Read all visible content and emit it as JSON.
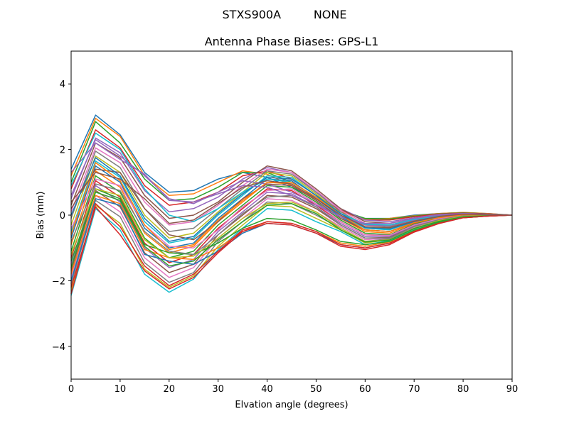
{
  "chart_data": {
    "type": "line",
    "suptitle": "STXS900A         NONE",
    "title": "Antenna Phase Biases: GPS-L1",
    "xlabel": "Elvation angle (degrees)",
    "ylabel": "Bias (mm)",
    "xlim": [
      0,
      90
    ],
    "ylim": [
      -5,
      5
    ],
    "xticks": [
      0,
      10,
      20,
      30,
      40,
      50,
      60,
      70,
      80,
      90
    ],
    "xtick_labels": [
      "0",
      "10",
      "20",
      "30",
      "40",
      "50",
      "60",
      "70",
      "80",
      "90"
    ],
    "yticks": [
      -4,
      -2,
      0,
      2,
      4
    ],
    "ytick_labels": [
      "−4",
      "−2",
      "0",
      "2",
      "4"
    ],
    "grid": false,
    "legend": "none",
    "x": [
      0,
      5,
      10,
      15,
      20,
      25,
      30,
      35,
      40,
      45,
      50,
      55,
      60,
      65,
      70,
      75,
      80,
      85,
      90
    ],
    "colors": [
      "#1f77b4",
      "#ff7f0e",
      "#2ca02c",
      "#d62728",
      "#9467bd",
      "#8c564b",
      "#e377c2",
      "#7f7f7f",
      "#bcbd22",
      "#17becf"
    ],
    "series": [
      {
        "values": [
          1.4,
          3.05,
          2.45,
          1.3,
          0.7,
          0.75,
          1.1,
          1.3,
          1.15,
          0.85,
          0.5,
          0.1,
          -0.1,
          -0.1,
          0.0,
          0.05,
          0.08,
          0.05,
          0.0
        ]
      },
      {
        "values": [
          1.2,
          2.95,
          2.4,
          1.2,
          0.6,
          0.65,
          1.0,
          1.35,
          1.25,
          0.9,
          0.5,
          0.1,
          -0.12,
          -0.1,
          -0.02,
          0.05,
          0.08,
          0.05,
          0.0
        ]
      },
      {
        "values": [
          1.0,
          2.85,
          2.2,
          1.1,
          0.45,
          0.5,
          0.85,
          1.3,
          1.3,
          1.0,
          0.55,
          0.15,
          -0.1,
          -0.12,
          -0.03,
          0.04,
          0.07,
          0.04,
          0.0
        ]
      },
      {
        "values": [
          0.8,
          2.6,
          2.05,
          0.9,
          0.3,
          0.4,
          0.7,
          1.2,
          1.35,
          1.1,
          0.6,
          0.15,
          -0.15,
          -0.15,
          -0.05,
          0.03,
          0.06,
          0.04,
          0.0
        ]
      },
      {
        "values": [
          0.5,
          2.35,
          1.9,
          0.75,
          0.1,
          0.2,
          0.55,
          1.1,
          1.45,
          1.3,
          0.7,
          0.2,
          -0.15,
          -0.2,
          -0.08,
          0.02,
          0.05,
          0.03,
          0.0
        ]
      },
      {
        "values": [
          0.3,
          2.2,
          1.75,
          0.6,
          -0.1,
          0.0,
          0.4,
          1.0,
          1.5,
          1.35,
          0.8,
          0.2,
          -0.2,
          -0.25,
          -0.1,
          0.0,
          0.05,
          0.03,
          0.0
        ]
      },
      {
        "values": [
          0.1,
          2.05,
          1.6,
          0.4,
          -0.3,
          -0.2,
          0.3,
          0.9,
          1.4,
          1.3,
          0.75,
          0.15,
          -0.25,
          -0.3,
          -0.12,
          0.0,
          0.04,
          0.02,
          0.0
        ]
      },
      {
        "values": [
          -0.1,
          1.95,
          1.45,
          0.2,
          -0.5,
          -0.4,
          0.2,
          0.8,
          1.35,
          1.25,
          0.7,
          0.1,
          -0.3,
          -0.35,
          -0.15,
          -0.02,
          0.04,
          0.02,
          0.0
        ]
      },
      {
        "values": [
          -0.3,
          1.8,
          1.3,
          0.0,
          -0.7,
          -0.55,
          0.1,
          0.7,
          1.3,
          1.2,
          0.65,
          0.05,
          -0.35,
          -0.4,
          -0.18,
          -0.03,
          0.03,
          0.02,
          0.0
        ]
      },
      {
        "values": [
          -0.5,
          1.65,
          1.15,
          -0.2,
          -0.85,
          -0.7,
          0.0,
          0.6,
          1.2,
          1.15,
          0.6,
          0.0,
          -0.4,
          -0.45,
          -0.2,
          -0.05,
          0.02,
          0.01,
          0.0
        ]
      },
      {
        "values": [
          -0.7,
          1.5,
          1.0,
          -0.4,
          -1.0,
          -0.85,
          -0.1,
          0.5,
          1.1,
          1.05,
          0.5,
          -0.05,
          -0.45,
          -0.5,
          -0.22,
          -0.06,
          0.02,
          0.01,
          0.0
        ]
      },
      {
        "values": [
          -0.9,
          1.35,
          0.85,
          -0.55,
          -1.15,
          -0.95,
          -0.2,
          0.4,
          1.0,
          0.95,
          0.45,
          -0.1,
          -0.5,
          -0.55,
          -0.25,
          -0.08,
          0.01,
          0.01,
          0.0
        ]
      },
      {
        "values": [
          -1.1,
          1.2,
          0.7,
          -0.7,
          -1.3,
          -1.1,
          -0.3,
          0.3,
          0.9,
          0.85,
          0.4,
          -0.15,
          -0.55,
          -0.6,
          -0.28,
          -0.1,
          0.0,
          0.0,
          0.0
        ]
      },
      {
        "values": [
          -1.3,
          1.05,
          0.55,
          -0.85,
          -1.45,
          -1.2,
          -0.4,
          0.2,
          0.8,
          0.75,
          0.3,
          -0.2,
          -0.6,
          -0.62,
          -0.3,
          -0.12,
          -0.01,
          0.0,
          0.0
        ]
      },
      {
        "values": [
          -1.5,
          0.9,
          0.4,
          -1.0,
          -1.6,
          -1.35,
          -0.5,
          0.1,
          0.7,
          0.65,
          0.25,
          -0.25,
          -0.65,
          -0.65,
          -0.33,
          -0.13,
          -0.02,
          0.0,
          0.0
        ]
      },
      {
        "values": [
          -1.7,
          0.75,
          0.25,
          -1.15,
          -1.75,
          -1.5,
          -0.6,
          0.0,
          0.6,
          0.55,
          0.2,
          -0.3,
          -0.7,
          -0.68,
          -0.35,
          -0.15,
          -0.03,
          -0.01,
          0.0
        ]
      },
      {
        "values": [
          -1.9,
          0.6,
          0.1,
          -1.3,
          -1.9,
          -1.6,
          -0.7,
          -0.1,
          0.5,
          0.45,
          0.1,
          -0.35,
          -0.75,
          -0.7,
          -0.38,
          -0.16,
          -0.04,
          -0.01,
          0.0
        ]
      },
      {
        "values": [
          -2.1,
          0.45,
          -0.05,
          -1.45,
          -2.05,
          -1.75,
          -0.8,
          -0.2,
          0.4,
          0.35,
          0.0,
          -0.4,
          -0.8,
          -0.72,
          -0.4,
          -0.18,
          -0.05,
          -0.02,
          0.0
        ]
      },
      {
        "values": [
          -2.3,
          0.3,
          -0.25,
          -1.65,
          -2.2,
          -1.85,
          -0.95,
          -0.3,
          0.3,
          0.25,
          -0.1,
          -0.45,
          -0.85,
          -0.75,
          -0.42,
          -0.2,
          -0.06,
          -0.02,
          0.0
        ]
      },
      {
        "values": [
          -2.45,
          0.2,
          -0.45,
          -1.8,
          -2.35,
          -1.95,
          -1.05,
          -0.4,
          0.2,
          0.15,
          -0.2,
          -0.5,
          -0.9,
          -0.78,
          -0.45,
          -0.22,
          -0.07,
          -0.02,
          0.0
        ]
      },
      {
        "values": [
          -2.0,
          0.5,
          0.3,
          -1.2,
          -1.4,
          -1.5,
          -1.1,
          -0.55,
          -0.25,
          -0.3,
          -0.55,
          -0.9,
          -1.0,
          -0.85,
          -0.5,
          -0.25,
          -0.08,
          -0.03,
          0.0
        ]
      },
      {
        "values": [
          -1.8,
          0.6,
          0.35,
          -1.05,
          -1.3,
          -1.35,
          -1.0,
          -0.5,
          -0.2,
          -0.25,
          -0.5,
          -0.85,
          -0.95,
          -0.82,
          -0.48,
          -0.24,
          -0.08,
          -0.03,
          0.0
        ]
      },
      {
        "values": [
          -1.6,
          0.8,
          0.5,
          -0.9,
          -1.15,
          -1.2,
          -0.85,
          -0.4,
          -0.1,
          -0.15,
          -0.45,
          -0.8,
          -0.9,
          -0.8,
          -0.46,
          -0.22,
          -0.07,
          -0.03,
          0.0
        ]
      },
      {
        "values": [
          -2.2,
          0.25,
          -0.6,
          -1.7,
          -2.25,
          -1.9,
          -1.15,
          -0.5,
          -0.25,
          -0.3,
          -0.55,
          -0.95,
          -1.05,
          -0.9,
          -0.52,
          -0.26,
          -0.08,
          -0.03,
          0.0
        ]
      },
      {
        "values": [
          0.6,
          2.3,
          1.8,
          1.2,
          0.5,
          0.35,
          0.7,
          1.05,
          0.95,
          0.7,
          0.35,
          -0.05,
          -0.3,
          -0.32,
          -0.15,
          -0.02,
          0.04,
          0.02,
          0.0
        ]
      },
      {
        "values": [
          0.2,
          1.4,
          1.3,
          0.2,
          -0.6,
          -0.75,
          -0.2,
          0.5,
          0.95,
          0.9,
          0.45,
          -0.1,
          -0.45,
          -0.5,
          -0.24,
          -0.07,
          0.02,
          0.01,
          0.0
        ]
      },
      {
        "values": [
          -0.4,
          1.1,
          0.9,
          -0.3,
          -0.95,
          -1.0,
          -0.45,
          0.25,
          0.75,
          0.8,
          0.35,
          -0.2,
          -0.6,
          -0.62,
          -0.3,
          -0.11,
          0.0,
          0.0,
          0.0
        ]
      },
      {
        "values": [
          -0.8,
          0.95,
          0.75,
          -0.5,
          -1.1,
          -1.2,
          -0.6,
          0.05,
          0.55,
          0.6,
          0.25,
          -0.3,
          -0.7,
          -0.7,
          -0.35,
          -0.14,
          -0.02,
          -0.01,
          0.0
        ]
      },
      {
        "values": [
          -1.2,
          0.8,
          0.6,
          -0.75,
          -1.3,
          -1.25,
          -0.7,
          -0.1,
          0.35,
          0.4,
          0.1,
          -0.4,
          -0.8,
          -0.75,
          -0.4,
          -0.17,
          -0.04,
          -0.01,
          0.0
        ]
      },
      {
        "values": [
          0.9,
          2.5,
          2.0,
          0.8,
          0.0,
          -0.2,
          0.2,
          0.7,
          1.1,
          1.0,
          0.55,
          0.05,
          -0.28,
          -0.3,
          -0.13,
          -0.02,
          0.04,
          0.02,
          0.0
        ]
      },
      {
        "values": [
          0.0,
          1.75,
          1.2,
          -0.1,
          -0.8,
          -0.65,
          0.05,
          0.65,
          1.15,
          1.1,
          0.6,
          0.05,
          -0.38,
          -0.42,
          -0.2,
          -0.05,
          0.03,
          0.01,
          0.0
        ]
      },
      {
        "values": [
          -0.6,
          1.6,
          1.05,
          -0.3,
          -1.05,
          -0.9,
          -0.15,
          0.45,
          1.0,
          1.0,
          0.55,
          0.0,
          -0.45,
          -0.5,
          -0.23,
          -0.08,
          0.01,
          0.01,
          0.0
        ]
      },
      {
        "values": [
          -1.4,
          0.7,
          0.45,
          -0.95,
          -1.55,
          -1.4,
          -0.75,
          -0.2,
          0.3,
          0.35,
          0.05,
          -0.45,
          -0.82,
          -0.76,
          -0.41,
          -0.19,
          -0.05,
          -0.02,
          0.0
        ]
      },
      {
        "values": [
          -2.4,
          0.35,
          -0.35,
          -1.55,
          -2.15,
          -1.8,
          -1.1,
          -0.45,
          -0.2,
          -0.25,
          -0.5,
          -0.9,
          -1.0,
          -0.86,
          -0.5,
          -0.25,
          -0.08,
          -0.03,
          0.0
        ]
      },
      {
        "values": [
          1.3,
          2.2,
          1.7,
          1.25,
          0.45,
          0.4,
          0.65,
          0.9,
          0.85,
          0.6,
          0.3,
          -0.05,
          -0.25,
          -0.25,
          -0.1,
          0.0,
          0.05,
          0.02,
          0.0
        ]
      },
      {
        "values": [
          0.4,
          1.3,
          1.1,
          0.5,
          -0.25,
          -0.15,
          0.35,
          0.85,
          1.05,
          0.95,
          0.5,
          0.0,
          -0.35,
          -0.38,
          -0.18,
          -0.04,
          0.03,
          0.01,
          0.0
        ]
      }
    ]
  }
}
